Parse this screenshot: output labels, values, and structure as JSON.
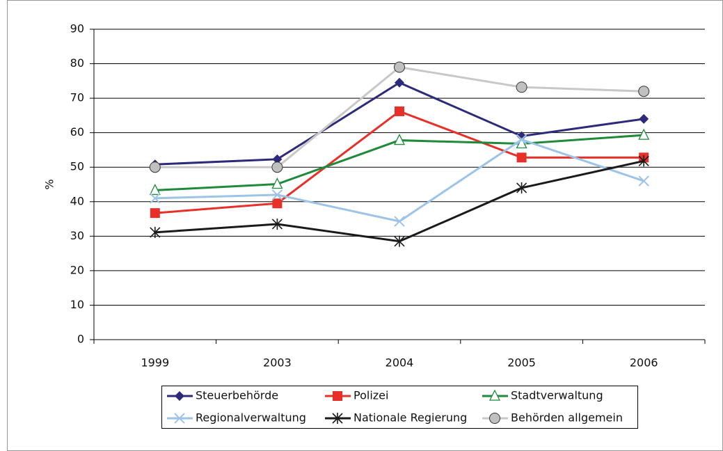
{
  "chart_data": {
    "type": "line",
    "y_label": "%",
    "categories": [
      "1999",
      "2003",
      "2004",
      "2005",
      "2006"
    ],
    "series": [
      {
        "name": "Steuerbehörde",
        "color": "#2e2a7a",
        "marker": "diamond",
        "values": [
          50.8,
          52.3,
          74.5,
          59,
          64
        ]
      },
      {
        "name": "Polizei",
        "color": "#e8302a",
        "marker": "square",
        "values": [
          36.7,
          39.5,
          66.2,
          52.8,
          52.8
        ]
      },
      {
        "name": "Stadtverwaltung",
        "color": "#1e8a3a",
        "marker": "triangle",
        "values": [
          43.3,
          45.1,
          57.8,
          56.8,
          59.3
        ]
      },
      {
        "name": "Regionalverwaltung",
        "color": "#9dc3e6",
        "marker": "cross",
        "values": [
          41,
          42,
          34.3,
          58,
          46
        ]
      },
      {
        "name": "Nationale Regierung",
        "color": "#1a1a1a",
        "marker": "asterisk",
        "values": [
          31.1,
          33.5,
          28.5,
          44,
          51.8
        ]
      },
      {
        "name": "Behörden allgemein",
        "color": "#c8c8c8",
        "marker": "circle",
        "values": [
          50,
          50,
          79,
          73.2,
          72
        ]
      }
    ],
    "ylim": [
      0,
      90
    ],
    "yticks": [
      0,
      10,
      20,
      30,
      40,
      50,
      60,
      70,
      80,
      90
    ],
    "grid": true
  }
}
